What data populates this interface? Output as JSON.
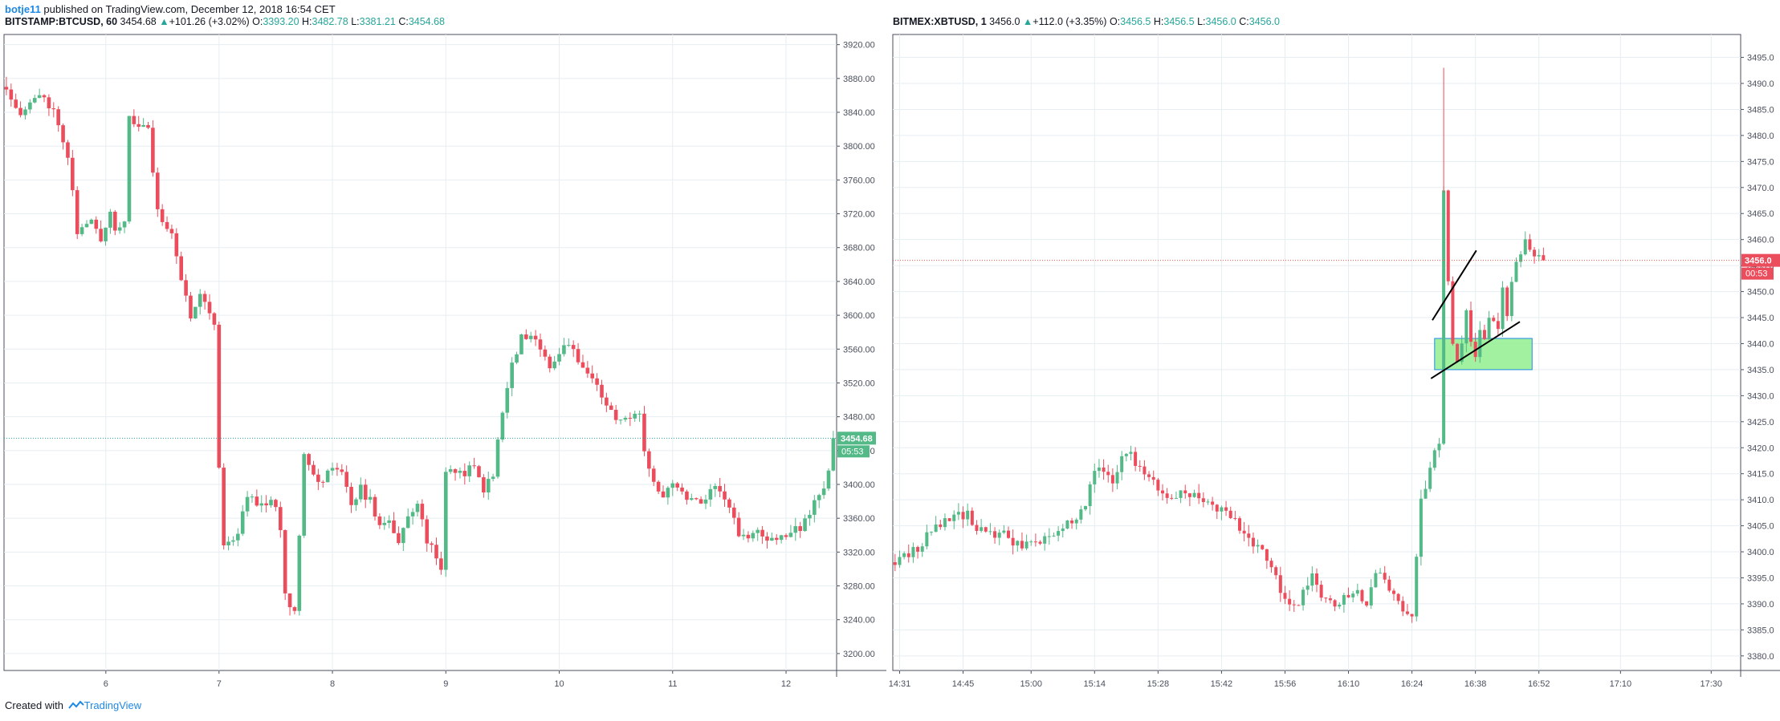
{
  "publish": {
    "author": "botje11",
    "text": " published on TradingView.com, December 12, 2018 16:54 CET"
  },
  "footer": {
    "created_with": "Created with",
    "brand": "TradingView"
  },
  "colors": {
    "up": "#26a69a",
    "down": "#ef5350",
    "up_fill": "#53b987",
    "down_fill": "#eb4d5c",
    "grid": "#e6eef2",
    "zone_fill": "#90ee90",
    "zone_border": "#1e88e5"
  },
  "panels": [
    {
      "header": {
        "symbol": "BITSTAMP:BTCUSD, 60",
        "last": "3454.68",
        "change_arrow": "▲",
        "change": "+101.26 (+3.02%)",
        "o_label": "O:",
        "o": "3393.20",
        "h_label": "H:",
        "h": "3482.78",
        "l_label": "L:",
        "l": "3381.21",
        "c_label": "C:",
        "c": "3454.68"
      },
      "price_tag": "3454.68",
      "countdown": "05:53"
    },
    {
      "header": {
        "symbol": "BITMEX:XBTUSD, 1",
        "last": "3456.0",
        "change_arrow": "▲",
        "change": "+112.0 (+3.35%)",
        "o_label": "O:",
        "o": "3456.5",
        "h_label": "H:",
        "h": "3456.5",
        "l_label": "L:",
        "l": "3456.0",
        "c_label": "C:",
        "c": "3456.0"
      },
      "price_tag": "3456.0",
      "countdown": "00:53"
    }
  ],
  "chart_data": [
    {
      "type": "candlestick",
      "symbol": "BITSTAMP:BTCUSD",
      "interval": "60",
      "y_ticks": [
        3200,
        3240,
        3280,
        3320,
        3360,
        3400,
        3440,
        3480,
        3520,
        3560,
        3600,
        3640,
        3680,
        3720,
        3760,
        3800,
        3840,
        3880,
        3920
      ],
      "ylim": [
        3180,
        3932
      ],
      "x_ticks": [
        {
          "label": "6",
          "x": 12.05
        },
        {
          "label": "7",
          "x": 36
        },
        {
          "label": "8",
          "x": 60
        },
        {
          "label": "9",
          "x": 84
        },
        {
          "label": "10",
          "x": 108
        },
        {
          "label": "11",
          "x": 132
        },
        {
          "label": "12",
          "x": 156
        }
      ],
      "xlim": [
        -9.5,
        166.7
      ],
      "last_price": 3454.68,
      "waypoints": [
        [
          -9,
          3870
        ],
        [
          -6,
          3840
        ],
        [
          -3,
          3855
        ],
        [
          -1,
          3860
        ],
        [
          2,
          3830
        ],
        [
          4,
          3790
        ],
        [
          6,
          3700
        ],
        [
          9,
          3710
        ],
        [
          11,
          3690
        ],
        [
          13,
          3725
        ],
        [
          14,
          3700
        ],
        [
          16,
          3715
        ],
        [
          17,
          3830
        ],
        [
          19,
          3825
        ],
        [
          21,
          3820
        ],
        [
          23,
          3720
        ],
        [
          26,
          3700
        ],
        [
          28,
          3640
        ],
        [
          30,
          3600
        ],
        [
          32,
          3630
        ],
        [
          35,
          3590
        ],
        [
          36,
          3420
        ],
        [
          37,
          3330
        ],
        [
          40,
          3340
        ],
        [
          42,
          3390
        ],
        [
          45,
          3375
        ],
        [
          47,
          3385
        ],
        [
          49,
          3350
        ],
        [
          50,
          3270
        ],
        [
          52,
          3250
        ],
        [
          54,
          3440
        ],
        [
          56,
          3410
        ],
        [
          58,
          3400
        ],
        [
          60,
          3425
        ],
        [
          62,
          3410
        ],
        [
          64,
          3380
        ],
        [
          66,
          3395
        ],
        [
          68,
          3380
        ],
        [
          70,
          3350
        ],
        [
          72,
          3360
        ],
        [
          74,
          3330
        ],
        [
          76,
          3360
        ],
        [
          78,
          3380
        ],
        [
          80,
          3335
        ],
        [
          83,
          3300
        ],
        [
          84,
          3420
        ],
        [
          86,
          3410
        ],
        [
          90,
          3420
        ],
        [
          92,
          3395
        ],
        [
          94,
          3410
        ],
        [
          96,
          3490
        ],
        [
          98,
          3540
        ],
        [
          100,
          3575
        ],
        [
          102,
          3570
        ],
        [
          104,
          3565
        ],
        [
          106,
          3540
        ],
        [
          108,
          3555
        ],
        [
          110,
          3570
        ],
        [
          112,
          3540
        ],
        [
          114,
          3530
        ],
        [
          116,
          3520
        ],
        [
          118,
          3490
        ],
        [
          120,
          3480
        ],
        [
          122,
          3475
        ],
        [
          125,
          3480
        ],
        [
          126,
          3435
        ],
        [
          128,
          3405
        ],
        [
          130,
          3390
        ],
        [
          132,
          3405
        ],
        [
          134,
          3390
        ],
        [
          136,
          3385
        ],
        [
          138,
          3380
        ],
        [
          140,
          3395
        ],
        [
          142,
          3395
        ],
        [
          144,
          3375
        ],
        [
          146,
          3340
        ],
        [
          148,
          3335
        ],
        [
          150,
          3345
        ],
        [
          152,
          3330
        ],
        [
          154,
          3340
        ],
        [
          156,
          3340
        ],
        [
          158,
          3345
        ],
        [
          160,
          3355
        ],
        [
          162,
          3380
        ],
        [
          164,
          3400
        ],
        [
          165,
          3420
        ],
        [
          166,
          3454.68
        ]
      ]
    },
    {
      "type": "candlestick",
      "symbol": "BITMEX:XBTUSD",
      "interval": "1",
      "y_ticks": [
        3380,
        3385,
        3390,
        3395,
        3400,
        3405,
        3410,
        3415,
        3420,
        3425,
        3430,
        3435,
        3440,
        3445,
        3450,
        3455,
        3460,
        3465,
        3470,
        3475,
        3480,
        3485,
        3490,
        3495
      ],
      "ylim": [
        3377.2,
        3499.4
      ],
      "x_ticks": [
        {
          "label": "14:31",
          "x": 1
        },
        {
          "label": "14:45",
          "x": 15
        },
        {
          "label": "15:00",
          "x": 30
        },
        {
          "label": "15:14",
          "x": 44
        },
        {
          "label": "15:28",
          "x": 58
        },
        {
          "label": "15:42",
          "x": 72
        },
        {
          "label": "15:56",
          "x": 86
        },
        {
          "label": "16:10",
          "x": 100
        },
        {
          "label": "16:24",
          "x": 114
        },
        {
          "label": "16:38",
          "x": 128
        },
        {
          "label": "16:52",
          "x": 142
        },
        {
          "label": "17:10",
          "x": 160
        },
        {
          "label": "17:30",
          "x": 180
        }
      ],
      "xlim": [
        -0.5,
        186.5
      ],
      "last_price": 3456.0,
      "waypoints": [
        [
          0,
          3398
        ],
        [
          2,
          3399
        ],
        [
          4,
          3400
        ],
        [
          6,
          3402
        ],
        [
          8,
          3404
        ],
        [
          10,
          3405
        ],
        [
          12,
          3406
        ],
        [
          14,
          3407
        ],
        [
          16,
          3407
        ],
        [
          18,
          3405
        ],
        [
          20,
          3403
        ],
        [
          22,
          3403
        ],
        [
          24,
          3404
        ],
        [
          26,
          3402
        ],
        [
          28,
          3401
        ],
        [
          30,
          3401
        ],
        [
          32,
          3402
        ],
        [
          34,
          3403
        ],
        [
          36,
          3404
        ],
        [
          38,
          3406
        ],
        [
          40,
          3407
        ],
        [
          42,
          3409
        ],
        [
          44,
          3416
        ],
        [
          46,
          3415
        ],
        [
          48,
          3414
        ],
        [
          50,
          3418
        ],
        [
          52,
          3419
        ],
        [
          54,
          3416
        ],
        [
          56,
          3414
        ],
        [
          58,
          3412
        ],
        [
          60,
          3411
        ],
        [
          62,
          3411
        ],
        [
          64,
          3411
        ],
        [
          66,
          3411
        ],
        [
          68,
          3410
        ],
        [
          70,
          3409
        ],
        [
          72,
          3408
        ],
        [
          74,
          3406
        ],
        [
          76,
          3405
        ],
        [
          78,
          3403
        ],
        [
          80,
          3401
        ],
        [
          82,
          3398
        ],
        [
          84,
          3395
        ],
        [
          86,
          3391
        ],
        [
          88,
          3389
        ],
        [
          90,
          3392
        ],
        [
          92,
          3395
        ],
        [
          94,
          3392
        ],
        [
          96,
          3391
        ],
        [
          98,
          3390
        ],
        [
          100,
          3392
        ],
        [
          102,
          3393
        ],
        [
          104,
          3390
        ],
        [
          106,
          3396
        ],
        [
          108,
          3394
        ],
        [
          110,
          3391
        ],
        [
          112,
          3389
        ],
        [
          114,
          3387
        ],
        [
          116,
          3410
        ],
        [
          118,
          3416
        ],
        [
          120,
          3421
        ],
        [
          121,
          3469
        ],
        [
          122,
          3453
        ],
        [
          123,
          3440
        ],
        [
          124,
          3436
        ],
        [
          125,
          3441
        ],
        [
          126,
          3447
        ],
        [
          127,
          3440
        ],
        [
          128,
          3438
        ],
        [
          129,
          3442
        ],
        [
          130,
          3440
        ],
        [
          131,
          3444
        ],
        [
          132,
          3445
        ],
        [
          133,
          3443
        ],
        [
          134,
          3450
        ],
        [
          135,
          3446
        ],
        [
          136,
          3451
        ],
        [
          137,
          3455
        ],
        [
          138,
          3458
        ],
        [
          139,
          3460
        ],
        [
          140,
          3458
        ],
        [
          141,
          3457
        ],
        [
          142,
          3456.5
        ],
        [
          143,
          3456
        ]
      ],
      "annotations": {
        "trendlines": [
          {
            "x1": 118.5,
            "y1": 3444.5,
            "x2": 128.2,
            "y2": 3457.9
          },
          {
            "x1": 118.2,
            "y1": 3433.3,
            "x2": 137.8,
            "y2": 3444.2
          }
        ],
        "zone": {
          "x1": 119,
          "x2": 140.5,
          "y_low": 3435,
          "y_high": 3441
        }
      }
    }
  ]
}
